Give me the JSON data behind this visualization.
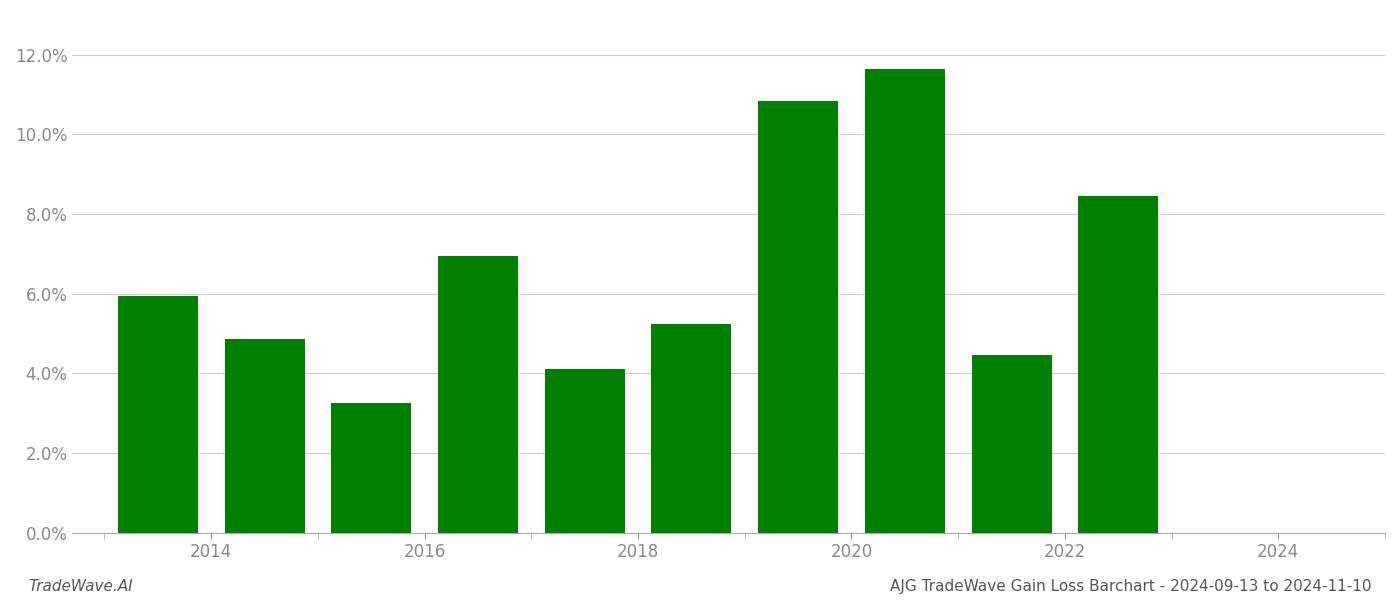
{
  "years": [
    2014,
    2015,
    2016,
    2017,
    2018,
    2019,
    2020,
    2021,
    2022,
    2023
  ],
  "values": [
    0.0595,
    0.0485,
    0.0325,
    0.0695,
    0.041,
    0.0525,
    0.1085,
    0.1165,
    0.0445,
    0.0845
  ],
  "bar_color": "#008000",
  "background_color": "#ffffff",
  "ylim": [
    0,
    0.13
  ],
  "yticks": [
    0.0,
    0.02,
    0.04,
    0.06,
    0.08,
    0.1,
    0.12
  ],
  "xlabel": "",
  "ylabel": "",
  "footer_left": "TradeWave.AI",
  "footer_right": "AJG TradeWave Gain Loss Barchart - 2024-09-13 to 2024-11-10",
  "grid_color": "#cccccc",
  "tick_color": "#888888",
  "footer_fontsize": 11,
  "axis_fontsize": 12
}
